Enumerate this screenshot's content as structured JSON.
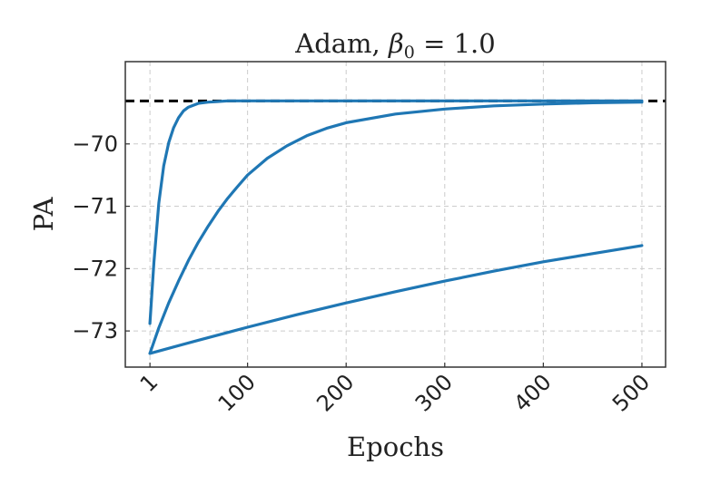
{
  "chart_data": {
    "type": "line",
    "title": "Adam, β₀ = 1.0",
    "title_parts": {
      "prefix": "Adam, ",
      "symbol": "β",
      "subscript": "0",
      "suffix": " = 1.0"
    },
    "xlabel": "Epochs",
    "ylabel": "PA",
    "xlim": [
      -24,
      524
    ],
    "ylim": [
      -73.58,
      -68.68
    ],
    "xticks": [
      1,
      100,
      200,
      300,
      400,
      500
    ],
    "xtick_labels": [
      "1",
      "100",
      "200",
      "300",
      "400",
      "500"
    ],
    "yticks": [
      -70,
      -71,
      -72,
      -73
    ],
    "ytick_labels": [
      "−70",
      "−71",
      "−72",
      "−73"
    ],
    "grid": true,
    "reference_line": {
      "y": -69.31,
      "style": "dashed",
      "color": "#000000"
    },
    "series_color": "#1f77b4",
    "series": [
      {
        "x": [
          1,
          5,
          10,
          15,
          20,
          25,
          30,
          35,
          40,
          50,
          60,
          70,
          80,
          100,
          150,
          200,
          300,
          400,
          500
        ],
        "y": [
          -72.88,
          -71.9,
          -70.95,
          -70.35,
          -69.98,
          -69.74,
          -69.58,
          -69.47,
          -69.41,
          -69.35,
          -69.33,
          -69.32,
          -69.31,
          -69.31,
          -69.31,
          -69.31,
          -69.31,
          -69.31,
          -69.31
        ]
      },
      {
        "x": [
          1,
          10,
          20,
          30,
          40,
          50,
          60,
          70,
          80,
          90,
          100,
          120,
          140,
          160,
          180,
          200,
          250,
          300,
          350,
          400,
          450,
          500
        ],
        "y": [
          -73.36,
          -72.95,
          -72.55,
          -72.2,
          -71.87,
          -71.58,
          -71.32,
          -71.08,
          -70.87,
          -70.68,
          -70.5,
          -70.23,
          -70.03,
          -69.87,
          -69.75,
          -69.66,
          -69.52,
          -69.44,
          -69.39,
          -69.36,
          -69.34,
          -69.33
        ]
      },
      {
        "x": [
          1,
          50,
          100,
          150,
          200,
          250,
          300,
          350,
          400,
          450,
          500
        ],
        "y": [
          -73.36,
          -73.15,
          -72.94,
          -72.74,
          -72.55,
          -72.37,
          -72.2,
          -72.04,
          -71.89,
          -71.76,
          -71.63
        ]
      }
    ]
  }
}
